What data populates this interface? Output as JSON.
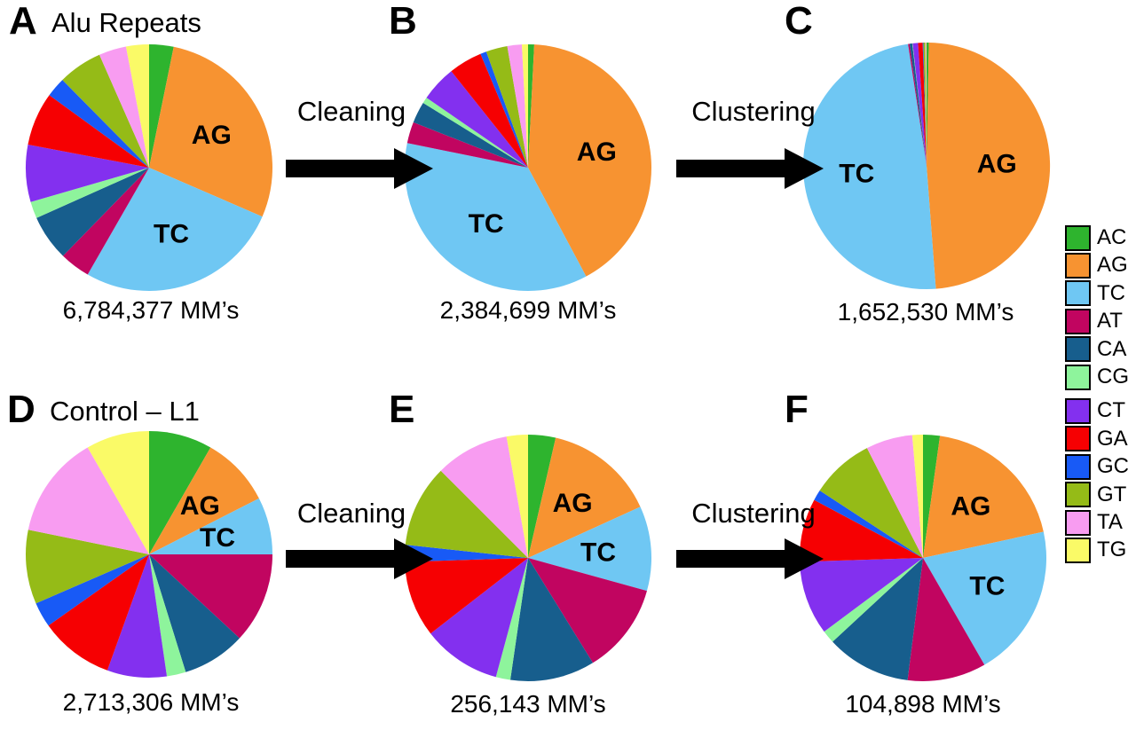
{
  "figure": {
    "background": "#ffffff",
    "legend": {
      "items": [
        {
          "label": "AC",
          "color": "#2EB42E"
        },
        {
          "label": "AG",
          "color": "#F79331"
        },
        {
          "label": "TC",
          "color": "#6FC7F3"
        },
        {
          "label": "AT",
          "color": "#C10560"
        },
        {
          "label": "CA",
          "color": "#175E8D"
        },
        {
          "label": "CG",
          "color": "#8EF49C"
        },
        {
          "label": "CT",
          "color": "#8330EF"
        },
        {
          "label": "GA",
          "color": "#F60002"
        },
        {
          "label": "GC",
          "color": "#185AF6"
        },
        {
          "label": "GT",
          "color": "#95BB17"
        },
        {
          "label": "TA",
          "color": "#F89CF1"
        },
        {
          "label": "TG",
          "color": "#FAFA67"
        }
      ]
    },
    "arrows": [
      {
        "row": "top",
        "label": "Cleaning"
      },
      {
        "row": "top",
        "label": "Clustering"
      },
      {
        "row": "bottom",
        "label": "Cleaning"
      },
      {
        "row": "bottom",
        "label": "Clustering"
      }
    ]
  },
  "chart_data": [
    {
      "id": "A",
      "panel_letter": "A",
      "type": "pie",
      "title": "Alu Repeats",
      "total_label": "6,784,377 MM’s",
      "categories": [
        "AC",
        "AG",
        "TC",
        "AT",
        "CA",
        "CG",
        "CT",
        "GA",
        "GC",
        "GT",
        "TA",
        "TG"
      ],
      "values_percent": [
        3.2,
        28.3,
        26.8,
        4.0,
        6.0,
        2.2,
        7.5,
        7.0,
        2.6,
        5.8,
        3.6,
        3.0
      ],
      "slice_labels_shown": [
        "AG",
        "TC"
      ],
      "start_angle_deg": 0,
      "direction": "clockwise"
    },
    {
      "id": "B",
      "panel_letter": "B",
      "type": "pie",
      "title": "",
      "total_label": "2,384,699 MM’s",
      "categories": [
        "AC",
        "AG",
        "TC",
        "AT",
        "CA",
        "CG",
        "CT",
        "GA",
        "GC",
        "GT",
        "TA",
        "TG"
      ],
      "values_percent": [
        0.8,
        41.4,
        36.0,
        2.8,
        2.8,
        0.8,
        4.7,
        4.4,
        0.8,
        2.8,
        1.9,
        0.8
      ],
      "slice_labels_shown": [
        "AG",
        "TC"
      ],
      "start_angle_deg": 0,
      "direction": "clockwise"
    },
    {
      "id": "C",
      "panel_letter": "C",
      "type": "pie",
      "title": "",
      "total_label": "1,652,530 MM’s",
      "categories": [
        "AC",
        "AG",
        "TC",
        "AT",
        "CA",
        "CG",
        "CT",
        "GA",
        "GC",
        "GT",
        "TA",
        "TG"
      ],
      "values_percent": [
        0.3,
        48.5,
        48.8,
        0.2,
        0.35,
        0.05,
        0.7,
        0.6,
        0.1,
        0.25,
        0.1,
        0.05
      ],
      "slice_labels_shown": [
        "AG",
        "TC"
      ],
      "start_angle_deg": 0,
      "direction": "clockwise"
    },
    {
      "id": "D",
      "panel_letter": "D",
      "type": "pie",
      "title": "Control – L1",
      "total_label": "2,713,306 MM’s",
      "categories": [
        "AC",
        "AG",
        "TC",
        "AT",
        "CA",
        "CG",
        "CT",
        "GA",
        "GC",
        "GT",
        "TA",
        "TG"
      ],
      "values_percent": [
        8.3,
        9.2,
        7.5,
        11.9,
        8.3,
        2.5,
        7.8,
        9.7,
        3.3,
        9.7,
        13.5,
        8.3
      ],
      "slice_labels_shown": [
        "AG",
        "TC"
      ],
      "start_angle_deg": 0,
      "direction": "clockwise"
    },
    {
      "id": "E",
      "panel_letter": "E",
      "type": "pie",
      "title": "",
      "total_label": "256,143 MM’s",
      "categories": [
        "AC",
        "AG",
        "TC",
        "AT",
        "CA",
        "CG",
        "CT",
        "GA",
        "GC",
        "GT",
        "TA",
        "TG"
      ],
      "values_percent": [
        3.6,
        14.6,
        11.1,
        11.9,
        11.1,
        1.9,
        10.3,
        10.0,
        2.2,
        10.8,
        9.7,
        2.8
      ],
      "slice_labels_shown": [
        "AG",
        "TC"
      ],
      "start_angle_deg": 0,
      "direction": "clockwise"
    },
    {
      "id": "F",
      "panel_letter": "F",
      "type": "pie",
      "title": "",
      "total_label": "104,898 MM’s",
      "categories": [
        "AC",
        "AG",
        "TC",
        "AT",
        "CA",
        "CG",
        "CT",
        "GA",
        "GC",
        "GT",
        "TA",
        "TG"
      ],
      "values_percent": [
        2.2,
        19.4,
        20.1,
        10.3,
        11.1,
        1.7,
        9.7,
        8.3,
        1.4,
        8.3,
        6.1,
        1.4
      ],
      "slice_labels_shown": [
        "AG",
        "TC"
      ],
      "start_angle_deg": 0,
      "direction": "clockwise"
    }
  ]
}
